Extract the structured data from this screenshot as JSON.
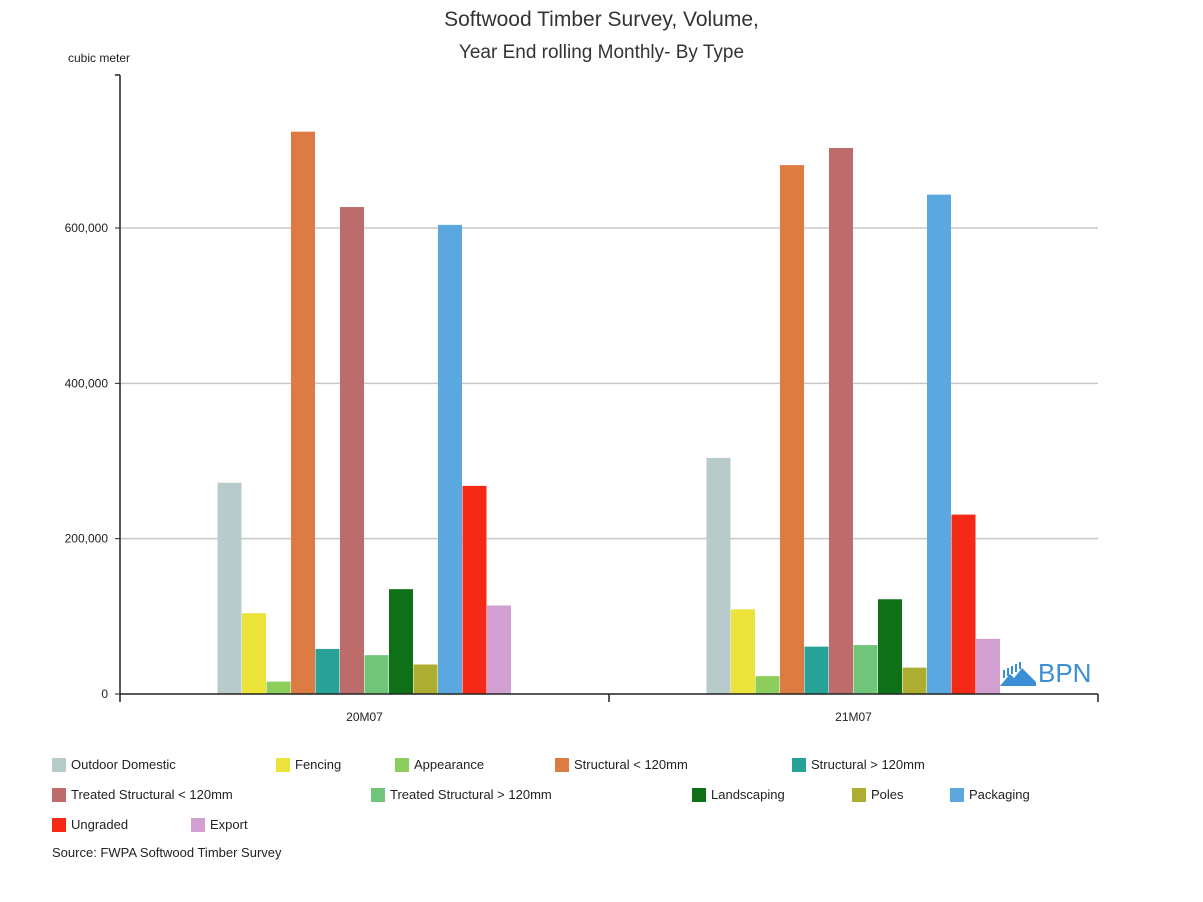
{
  "chart_data": {
    "type": "bar",
    "title": "Softwood Timber Survey, Volume,",
    "subtitle": "Year End rolling Monthly- By Type",
    "ylabel": "cubic meter",
    "xlabel": "",
    "ylim": [
      0,
      800000
    ],
    "yticks": [
      {
        "value": 0,
        "label": "0"
      },
      {
        "value": 200000,
        "label": "200,000"
      },
      {
        "value": 400000,
        "label": "400,000"
      },
      {
        "value": 600000,
        "label": "600,000"
      }
    ],
    "grid": true,
    "legend_position": "bottom",
    "categories": [
      "20M07",
      "21M07"
    ],
    "series": [
      {
        "name": "Outdoor Domestic",
        "color": "#b7cbcb",
        "values": [
          272000,
          304000
        ]
      },
      {
        "name": "Fencing",
        "color": "#ebe23a",
        "values": [
          104000,
          109000
        ]
      },
      {
        "name": "Appearance",
        "color": "#8ccd5b",
        "values": [
          16000,
          23000
        ]
      },
      {
        "name": "Structural < 120mm",
        "color": "#dd7c42",
        "values": [
          724000,
          681000
        ]
      },
      {
        "name": "Structural > 120mm",
        "color": "#28a197",
        "values": [
          58000,
          61000
        ]
      },
      {
        "name": "Treated Structural < 120mm",
        "color": "#bd6b6b",
        "values": [
          627000,
          703000
        ]
      },
      {
        "name": "Treated Structural > 120mm",
        "color": "#71c57b",
        "values": [
          50000,
          63000
        ]
      },
      {
        "name": "Landscaping",
        "color": "#0f7018",
        "values": [
          135000,
          122000
        ]
      },
      {
        "name": "Poles",
        "color": "#adad31",
        "values": [
          38000,
          34000
        ]
      },
      {
        "name": "Packaging",
        "color": "#5ba8e0",
        "values": [
          604000,
          643000
        ]
      },
      {
        "name": "Ungraded",
        "color": "#f42a17",
        "values": [
          268000,
          231000
        ]
      },
      {
        "name": "Export",
        "color": "#d29fd1",
        "values": [
          114000,
          71000
        ]
      }
    ]
  },
  "source": "Source: FWPA Softwood Timber Survey",
  "logo": {
    "text": "BPN",
    "color": "#3a8fd6"
  }
}
